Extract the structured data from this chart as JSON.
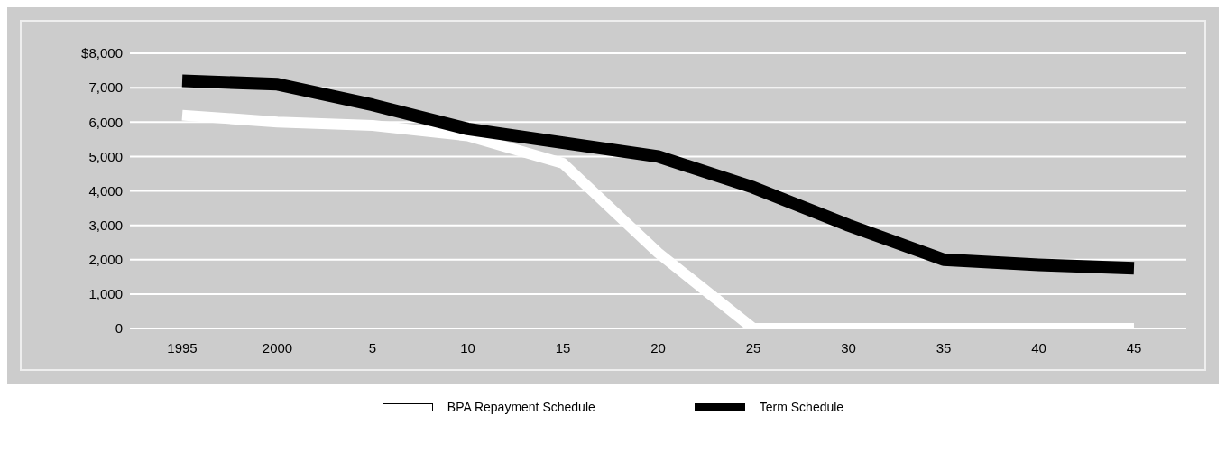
{
  "chart_data": {
    "type": "line",
    "categories": [
      "1995",
      "2000",
      "5",
      "10",
      "15",
      "20",
      "25",
      "30",
      "35",
      "40",
      "45"
    ],
    "series": [
      {
        "name": "BPA Repayment Schedule",
        "color": "#ffffff",
        "values": [
          6200,
          6000,
          5900,
          5600,
          4800,
          2200,
          0,
          0,
          0,
          0,
          0
        ]
      },
      {
        "name": "Term Schedule",
        "color": "#000000",
        "values": [
          7200,
          7100,
          6500,
          5800,
          5400,
          5000,
          4100,
          3000,
          2000,
          1850,
          1750
        ]
      }
    ],
    "ylim": [
      0,
      8000
    ],
    "yticks": [
      0,
      {
        "value": 1000,
        "label": "1,000"
      },
      {
        "value": 2000,
        "label": "2,000"
      },
      {
        "value": 3000,
        "label": "3,000"
      },
      {
        "value": 4000,
        "label": "4,000"
      },
      {
        "value": 5000,
        "label": "5,000"
      },
      {
        "value": 6000,
        "label": "6,000"
      },
      {
        "value": 7000,
        "label": "7,000"
      },
      {
        "value": 8000,
        "label": "$8,000"
      }
    ],
    "grid": "y",
    "legend": "bottom",
    "marker": "none",
    "line_style": "solid"
  }
}
